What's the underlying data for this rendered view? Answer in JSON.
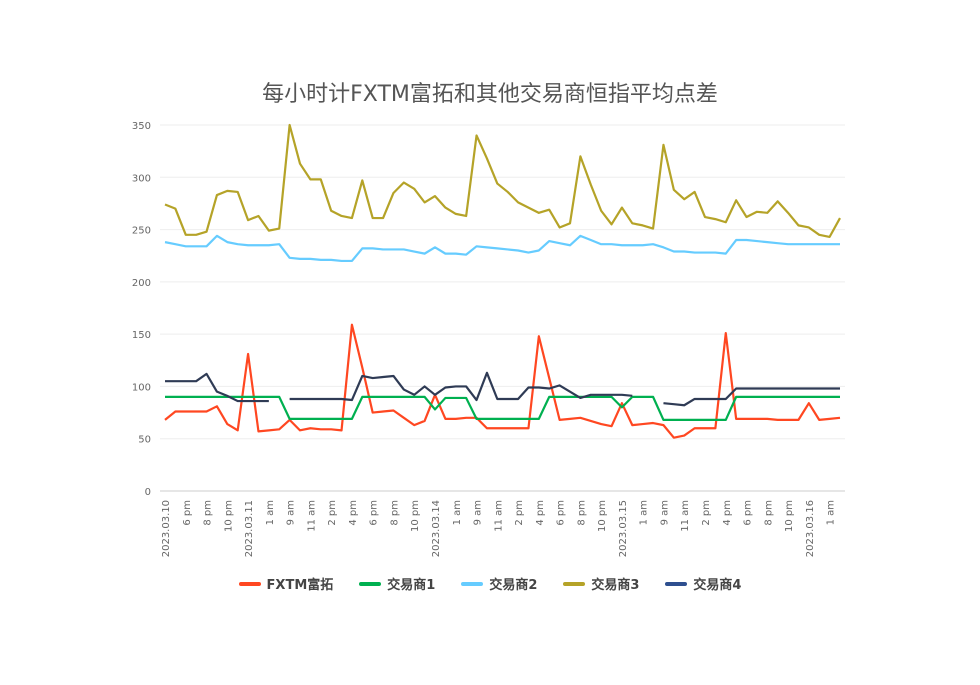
{
  "chart_data": {
    "type": "line",
    "title": "每小时计FXTM富拓和其他交易商恒指平均点差",
    "xlabel": "",
    "ylabel": "",
    "ylim": [
      0,
      350
    ],
    "yticks": [
      0,
      50,
      100,
      150,
      200,
      250,
      300,
      350
    ],
    "grid": true,
    "legend_position": "bottom",
    "x_tick_labels": [
      "2023.03.10",
      "6 pm",
      "8 pm",
      "10 pm",
      "2023.03.11",
      "1 am",
      "9 am",
      "11 am",
      "2 pm",
      "4 pm",
      "6 pm",
      "8 pm",
      "10 pm",
      "2023.03.14",
      "1 am",
      "9 am",
      "11 am",
      "2 pm",
      "4 pm",
      "6 pm",
      "8 pm",
      "10 pm",
      "2023.03.15",
      "1 am",
      "9 am",
      "11 am",
      "2 pm",
      "4 pm",
      "6 pm",
      "8 pm",
      "10 pm",
      "2023.03.16",
      "1 am"
    ],
    "x_tick_every": 2,
    "series": [
      {
        "name": "FXTM富拓",
        "color": "#ff4721",
        "values": [
          68,
          76,
          76,
          76,
          76,
          81,
          64,
          58,
          131,
          57,
          58,
          59,
          68,
          58,
          60,
          59,
          59,
          58,
          159,
          118,
          75,
          76,
          77,
          70,
          63,
          67,
          92,
          69,
          69,
          70,
          70,
          60,
          60,
          60,
          60,
          60,
          148,
          108,
          68,
          69,
          70,
          67,
          64,
          62,
          84,
          63,
          64,
          65,
          63,
          51,
          53,
          60,
          60,
          60,
          151,
          69,
          69,
          69,
          69,
          68,
          68,
          68,
          84,
          68,
          69,
          70
        ]
      },
      {
        "name": "交易商1",
        "color": "#00b050",
        "values": [
          90,
          90,
          90,
          90,
          90,
          90,
          90,
          90,
          90,
          90,
          90,
          90,
          69,
          69,
          69,
          69,
          69,
          69,
          69,
          90,
          90,
          90,
          90,
          90,
          90,
          90,
          78,
          89,
          89,
          89,
          69,
          69,
          69,
          69,
          69,
          69,
          69,
          90,
          90,
          90,
          90,
          90,
          90,
          90,
          80,
          90,
          90,
          90,
          68,
          68,
          68,
          68,
          68,
          68,
          68,
          90,
          90,
          90,
          90,
          90,
          90,
          90,
          90,
          90,
          90,
          90
        ]
      },
      {
        "name": "交易商2",
        "color": "#66ccff",
        "values": [
          238,
          236,
          234,
          234,
          234,
          244,
          238,
          236,
          235,
          235,
          235,
          236,
          223,
          222,
          222,
          221,
          221,
          220,
          220,
          232,
          232,
          231,
          231,
          231,
          229,
          227,
          233,
          227,
          227,
          226,
          234,
          233,
          232,
          231,
          230,
          228,
          230,
          239,
          237,
          235,
          244,
          240,
          236,
          236,
          235,
          235,
          235,
          236,
          233,
          229,
          229,
          228,
          228,
          228,
          227,
          240,
          240,
          239,
          238,
          237,
          236,
          236,
          236,
          236,
          236,
          236
        ]
      },
      {
        "name": "交易商3",
        "color": "#b5a328",
        "values": [
          274,
          270,
          245,
          245,
          248,
          283,
          287,
          286,
          259,
          263,
          249,
          251,
          350,
          313,
          298,
          298,
          268,
          263,
          261,
          297,
          261,
          261,
          285,
          295,
          289,
          276,
          282,
          271,
          265,
          263,
          340,
          318,
          294,
          286,
          276,
          271,
          266,
          269,
          252,
          256,
          320,
          293,
          268,
          255,
          271,
          256,
          254,
          251,
          331,
          288,
          279,
          286,
          262,
          260,
          257,
          278,
          262,
          267,
          266,
          277,
          266,
          254,
          252,
          245,
          243,
          261
        ]
      },
      {
        "name": "交易商4",
        "color": "#2f3b55",
        "legend_color": "#2e4f8f",
        "values": [
          105,
          105,
          105,
          105,
          112,
          95,
          91,
          86,
          86,
          86,
          86,
          null,
          88,
          88,
          88,
          88,
          88,
          88,
          87,
          110,
          108,
          109,
          110,
          97,
          92,
          100,
          92,
          99,
          100,
          100,
          87,
          113,
          88,
          88,
          88,
          99,
          99,
          98,
          101,
          95,
          89,
          92,
          92,
          92,
          92,
          91,
          null,
          null,
          84,
          83,
          82,
          88,
          88,
          88,
          88,
          98,
          98,
          98,
          98,
          98,
          98,
          98,
          98,
          98,
          98,
          98
        ]
      }
    ]
  }
}
